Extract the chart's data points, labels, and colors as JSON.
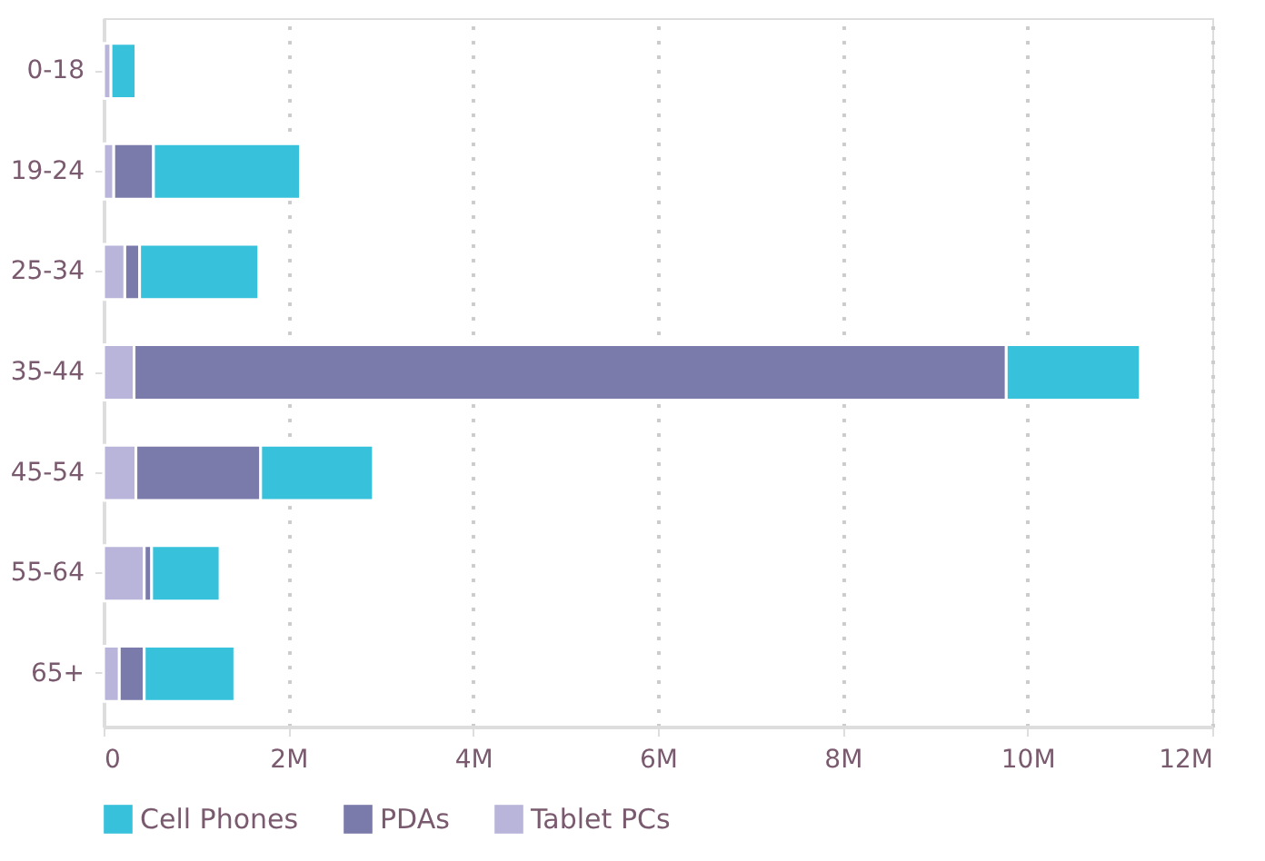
{
  "chart_data": {
    "type": "bar",
    "orientation": "horizontal",
    "stacked": true,
    "categories": [
      "0-18",
      "19-24",
      "25-34",
      "35-44",
      "45-54",
      "55-64",
      "65+"
    ],
    "series": [
      {
        "name": "Tablet PCs",
        "color": "#b9b5da",
        "values": [
          0.08,
          0.11,
          0.23,
          0.33,
          0.35,
          0.44,
          0.17
        ]
      },
      {
        "name": "PDAs",
        "color": "#7b7bab",
        "values": [
          null,
          0.43,
          0.16,
          9.44,
          1.35,
          0.08,
          0.27
        ]
      },
      {
        "name": "Cell Phones",
        "color": "#38c1db",
        "values": [
          0.27,
          1.59,
          1.29,
          1.45,
          1.22,
          0.74,
          0.98
        ]
      }
    ],
    "xlim": [
      0,
      12
    ],
    "xticks": [
      {
        "value": 0,
        "label": "0"
      },
      {
        "value": 2,
        "label": "2M"
      },
      {
        "value": 4,
        "label": "4M"
      },
      {
        "value": 6,
        "label": "6M"
      },
      {
        "value": 8,
        "label": "8M"
      },
      {
        "value": 10,
        "label": "10M"
      },
      {
        "value": 12,
        "label": "12M"
      }
    ],
    "grid": "x",
    "legend": "bottom"
  }
}
